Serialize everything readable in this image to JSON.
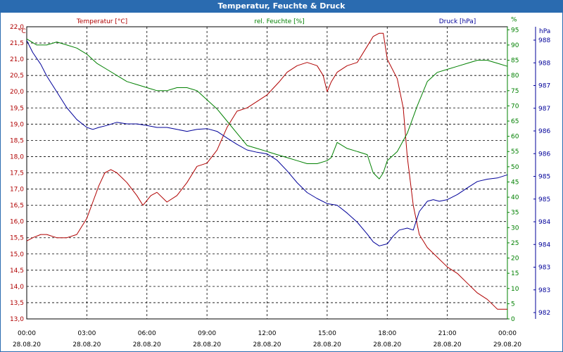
{
  "window": {
    "title": "Temperatur, Feuchte & Druck"
  },
  "chart_data": {
    "type": "line",
    "title": "Temperatur, Feuchte & Druck",
    "grid": true,
    "x": {
      "ticks": [
        {
          "time": "00:00",
          "date": "28.08.20"
        },
        {
          "time": "03:00",
          "date": "28.08.20"
        },
        {
          "time": "06:00",
          "date": "28.08.20"
        },
        {
          "time": "09:00",
          "date": "28.08.20"
        },
        {
          "time": "12:00",
          "date": "28.08.20"
        },
        {
          "time": "15:00",
          "date": "28.08.20"
        },
        {
          "time": "18:00",
          "date": "28.08.20"
        },
        {
          "time": "21:00",
          "date": "28.08.20"
        },
        {
          "time": "00:00",
          "date": "29.08.20"
        }
      ],
      "range_hours": [
        0,
        24
      ]
    },
    "axes": {
      "temperature": {
        "unit": "°C",
        "ylim": [
          13.0,
          22.0
        ],
        "tick_labels": [
          "13,0",
          "13,5",
          "14,0",
          "14,5",
          "15,0",
          "15,5",
          "16,0",
          "16,5",
          "17,0",
          "17,5",
          "18,0",
          "18,5",
          "19,0",
          "19,5",
          "20,0",
          "20,5",
          "21,0",
          "21,5",
          "22,0"
        ],
        "color": "#b00000"
      },
      "humidity": {
        "unit": "%",
        "ylim": [
          0,
          96
        ],
        "tick_labels": [
          "0",
          "5",
          "10",
          "15",
          "20",
          "25",
          "30",
          "35",
          "40",
          "45",
          "50",
          "55",
          "60",
          "65",
          "70",
          "75",
          "80",
          "85",
          "90",
          "95"
        ],
        "top_label": "%",
        "color": "#008000"
      },
      "pressure": {
        "unit": "hPa",
        "tick_labels": [
          "982",
          "983",
          "983",
          "984",
          "984",
          "985",
          "985",
          "986",
          "986",
          "987",
          "987",
          "988",
          "988"
        ],
        "color": "#000099"
      }
    },
    "series": [
      {
        "name": "Temperatur [°C]",
        "axis": "temperature",
        "color": "#b00000",
        "x": [
          0,
          0.3,
          0.7,
          1.0,
          1.5,
          2.0,
          2.5,
          3.0,
          3.3,
          3.6,
          3.9,
          4.2,
          4.5,
          5.0,
          5.5,
          5.8,
          6.2,
          6.5,
          7.0,
          7.5,
          8.0,
          8.5,
          9.0,
          9.5,
          10.0,
          10.5,
          11.0,
          11.5,
          12.0,
          12.3,
          12.6,
          13.0,
          13.5,
          14.0,
          14.5,
          14.8,
          15.0,
          15.2,
          15.5,
          16.0,
          16.5,
          17.0,
          17.3,
          17.6,
          17.8,
          18.0,
          18.5,
          18.8,
          19.0,
          19.3,
          19.6,
          20.0,
          20.5,
          21.0,
          21.5,
          22.0,
          22.5,
          23.0,
          23.5,
          24.0
        ],
        "values": [
          15.4,
          15.5,
          15.6,
          15.6,
          15.5,
          15.5,
          15.6,
          16.1,
          16.6,
          17.1,
          17.5,
          17.6,
          17.5,
          17.2,
          16.8,
          16.5,
          16.8,
          16.9,
          16.6,
          16.8,
          17.2,
          17.7,
          17.8,
          18.2,
          18.9,
          19.4,
          19.5,
          19.7,
          19.9,
          20.1,
          20.3,
          20.6,
          20.8,
          20.9,
          20.8,
          20.5,
          20.0,
          20.3,
          20.6,
          20.8,
          20.9,
          21.4,
          21.7,
          21.8,
          21.8,
          21.0,
          20.4,
          19.5,
          18.0,
          16.5,
          15.6,
          15.2,
          14.9,
          14.6,
          14.4,
          14.1,
          13.8,
          13.6,
          13.3,
          13.3
        ]
      },
      {
        "name": "rel. Feuchte [%]",
        "axis": "humidity",
        "color": "#008000",
        "x": [
          0,
          0.5,
          1.0,
          1.5,
          2.0,
          2.5,
          3.0,
          3.5,
          4.0,
          4.5,
          5.0,
          5.5,
          6.0,
          6.5,
          7.0,
          7.5,
          8.0,
          8.5,
          9.0,
          9.5,
          10.0,
          10.5,
          11.0,
          11.5,
          12.0,
          12.5,
          13.0,
          13.5,
          14.0,
          14.5,
          15.0,
          15.2,
          15.5,
          16.0,
          16.5,
          17.0,
          17.3,
          17.6,
          17.8,
          18.0,
          18.5,
          19.0,
          19.5,
          20.0,
          20.5,
          21.0,
          21.5,
          22.0,
          22.5,
          23.0,
          23.5,
          24.0
        ],
        "values": [
          92,
          90,
          90,
          91,
          90,
          89,
          87,
          84,
          82,
          80,
          78,
          77,
          76,
          75,
          75,
          76,
          76,
          75,
          72,
          69,
          65,
          61,
          57,
          56,
          55,
          54,
          53,
          52,
          51,
          51,
          52,
          53,
          58,
          56,
          55,
          54,
          48,
          46,
          48,
          52,
          55,
          61,
          70,
          78,
          81,
          82,
          83,
          84,
          85,
          85,
          84,
          83
        ]
      },
      {
        "name": "Druck [hPa]",
        "axis": "pressure",
        "color": "#000099",
        "x": [
          0,
          0.3,
          0.7,
          1.0,
          1.5,
          2.0,
          2.5,
          3.0,
          3.3,
          3.6,
          4.0,
          4.5,
          5.0,
          5.5,
          6.0,
          6.5,
          7.0,
          7.5,
          8.0,
          8.5,
          9.0,
          9.5,
          10.0,
          10.5,
          11.0,
          11.5,
          12.0,
          12.5,
          13.0,
          13.5,
          14.0,
          14.5,
          15.0,
          15.5,
          16.0,
          16.5,
          17.0,
          17.3,
          17.6,
          18.0,
          18.3,
          18.6,
          19.0,
          19.3,
          19.6,
          20.0,
          20.3,
          20.6,
          21.0,
          21.5,
          22.0,
          22.5,
          23.0,
          23.5,
          24.0
        ],
        "values": [
          988.75,
          988.45,
          988.15,
          987.85,
          987.45,
          987.05,
          986.75,
          986.55,
          986.5,
          986.55,
          986.6,
          986.68,
          986.64,
          986.64,
          986.6,
          986.55,
          986.55,
          986.5,
          986.45,
          986.5,
          986.52,
          986.45,
          986.28,
          986.12,
          985.98,
          985.92,
          985.88,
          985.72,
          985.45,
          985.15,
          984.9,
          984.75,
          984.62,
          984.58,
          984.38,
          984.15,
          983.85,
          983.65,
          983.55,
          983.6,
          983.8,
          983.95,
          984.0,
          983.95,
          984.42,
          984.68,
          984.72,
          984.68,
          984.72,
          984.85,
          985.02,
          985.18,
          985.24,
          985.27,
          985.35
        ]
      }
    ],
    "legend": [
      {
        "label": "Temperatur [°C]",
        "color": "#b00000"
      },
      {
        "label": "rel. Feuchte [%]",
        "color": "#008000"
      },
      {
        "label": "Druck [hPa]",
        "color": "#000099"
      }
    ]
  }
}
